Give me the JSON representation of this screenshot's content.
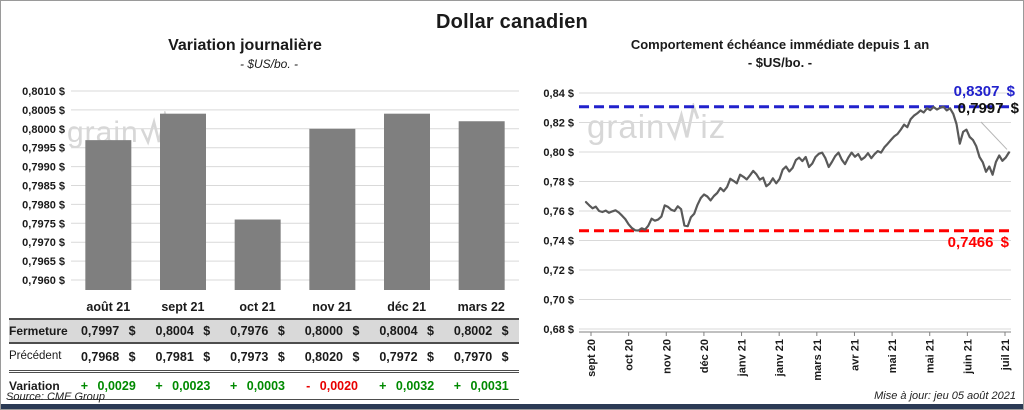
{
  "page": {
    "title": "Dollar canadien",
    "watermark": "grainwiz",
    "source": "Source: CME Group",
    "updated": "Mise à jour: jeu 05 août 2021"
  },
  "colors": {
    "bar": "#7F7F7F",
    "line": "#595959",
    "grid": "#D9D9D9",
    "axis": "#808080",
    "blue": "#2121CC",
    "red": "#FF0000",
    "green": "#008A00",
    "variation_red": "#E80000",
    "row_bg": "#D9D9D9",
    "navy_bar": "#2B3A55",
    "watermark": "#D7D7D7"
  },
  "table": {
    "columns": [
      "août 21",
      "sept 21",
      "oct 21",
      "nov 21",
      "déc 21",
      "mars 22"
    ],
    "rows": [
      {
        "id": "ferm",
        "label": "Fermeture",
        "values": [
          "0,7997 $",
          "0,8004 $",
          "0,7976 $",
          "0,8000 $",
          "0,8004 $",
          "0,8002 $"
        ]
      },
      {
        "id": "prec",
        "label": "Précédent",
        "values": [
          "0,7968 $",
          "0,7981 $",
          "0,7973 $",
          "0,8020 $",
          "0,7972 $",
          "0,7970 $"
        ]
      },
      {
        "id": "vari",
        "label": "Variation",
        "values": [
          "+ 0,0029",
          "+ 0,0023",
          "+ 0,0003",
          "- 0,0020",
          "+ 0,0032",
          "+ 0,0031"
        ],
        "value_colors": [
          "green",
          "green",
          "green",
          "red",
          "green",
          "green"
        ]
      }
    ]
  },
  "chart_data": [
    {
      "type": "bar",
      "title": "Variation  journalière",
      "subtitle": "- $US/bo. -",
      "categories": [
        "août 21",
        "sept 21",
        "oct 21",
        "nov 21",
        "déc 21",
        "mars 22"
      ],
      "values": [
        0.7997,
        0.8004,
        0.7976,
        0.8,
        0.8004,
        0.8002
      ],
      "yticks": [
        0.801,
        0.8005,
        0.8,
        0.7995,
        0.799,
        0.7985,
        0.798,
        0.7975,
        0.797,
        0.7965,
        0.796
      ],
      "ylim": [
        0.79575,
        0.8012
      ],
      "ytick_format": "fr-4dec-dollar",
      "grid": true,
      "legend": false
    },
    {
      "type": "line",
      "title": "Comportement échéance immédiate depuis 1 an",
      "subtitle": "- $US/bo. -",
      "x_labels": [
        "sept 20",
        "oct 20",
        "nov 20",
        "déc 20",
        "janv 21",
        "janv 21",
        "mars 21",
        "avr 21",
        "mai 21",
        "mai 21",
        "juin 21",
        "juil 21"
      ],
      "yticks": [
        0.84,
        0.82,
        0.8,
        0.78,
        0.76,
        0.74,
        0.72,
        0.7,
        0.68
      ],
      "ylim": [
        0.67,
        0.85
      ],
      "ytick_format": "fr-2dec-dollar",
      "grid": true,
      "legend": false,
      "high_line": {
        "value": 0.8307,
        "label": "0,8307 $"
      },
      "low_line": {
        "value": 0.7466,
        "label": "0,7466 $"
      },
      "last_label": {
        "value": 0.7997,
        "label": "0,7997 $"
      },
      "values": [
        0.766,
        0.7638,
        0.7618,
        0.763,
        0.76,
        0.7593,
        0.7603,
        0.7588,
        0.7597,
        0.7605,
        0.759,
        0.7568,
        0.7545,
        0.751,
        0.7484,
        0.7469,
        0.7468,
        0.7483,
        0.7473,
        0.75,
        0.7548,
        0.7534,
        0.7542,
        0.7562,
        0.7638,
        0.7628,
        0.7608,
        0.76,
        0.7632,
        0.7612,
        0.7502,
        0.7497,
        0.7558,
        0.7582,
        0.7642,
        0.7688,
        0.7712,
        0.7698,
        0.7672,
        0.7702,
        0.7722,
        0.7756,
        0.7734,
        0.7762,
        0.7818,
        0.7804,
        0.7788,
        0.7846,
        0.7832,
        0.7814,
        0.7842,
        0.7872,
        0.7848,
        0.7812,
        0.7826,
        0.7768,
        0.7786,
        0.7822,
        0.7788,
        0.7816,
        0.788,
        0.7902,
        0.7868,
        0.7892,
        0.7946,
        0.7962,
        0.7938,
        0.7966,
        0.7898,
        0.7922,
        0.7966,
        0.7988,
        0.7996,
        0.7958,
        0.7898,
        0.7932,
        0.7972,
        0.7996,
        0.7948,
        0.7918,
        0.7962,
        0.7996,
        0.7968,
        0.7986,
        0.7948,
        0.7964,
        0.7992,
        0.7958,
        0.7986,
        0.8006,
        0.7996,
        0.8032,
        0.8056,
        0.8082,
        0.8106,
        0.8122,
        0.8152,
        0.8186,
        0.8168,
        0.8222,
        0.8246,
        0.8262,
        0.8282,
        0.8268,
        0.8296,
        0.8284,
        0.8305,
        0.8288,
        0.83,
        0.8307,
        0.8282,
        0.8296,
        0.8258,
        0.819,
        0.8056,
        0.8136,
        0.8152,
        0.8102,
        0.8082,
        0.804,
        0.7966,
        0.793,
        0.7866,
        0.7902,
        0.7846,
        0.7932,
        0.7976,
        0.794,
        0.7962,
        0.7997
      ]
    }
  ]
}
